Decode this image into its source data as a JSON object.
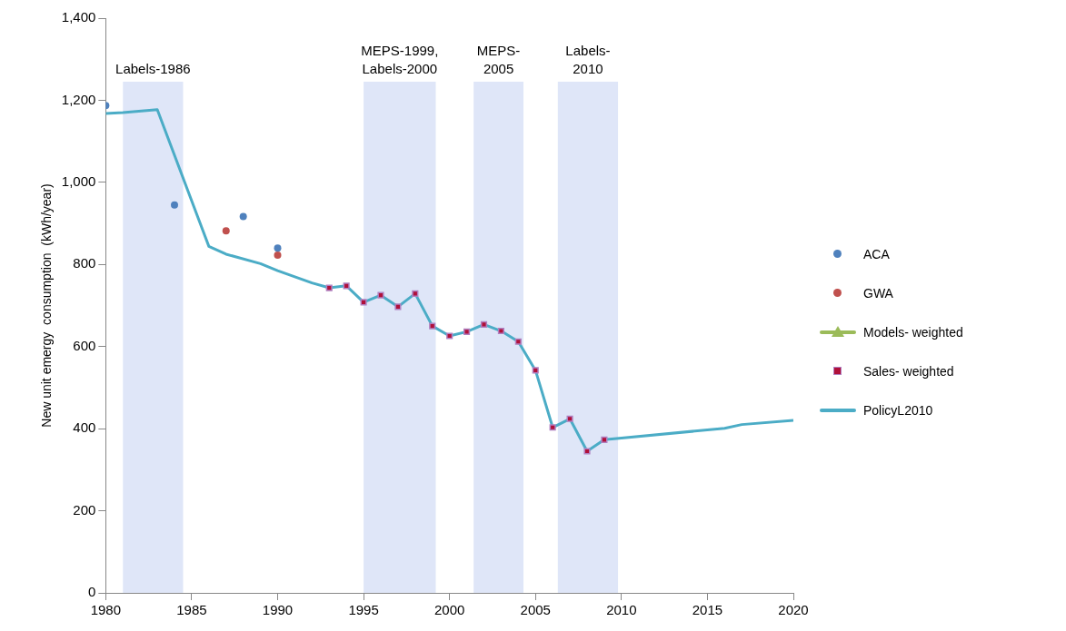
{
  "chart_data": {
    "type": "scatter",
    "ylabel": "New unit emergy  consumption  (kWh/year)",
    "xlim": [
      1980,
      2020
    ],
    "xticks": [
      1980,
      1985,
      1990,
      1995,
      2000,
      2005,
      2010,
      2015,
      2020
    ],
    "ylim": [
      0,
      1400
    ],
    "yticks": [
      0,
      200,
      400,
      600,
      800,
      {
        "value": 1000,
        "label": "1,000"
      },
      {
        "value": 1200,
        "label": "1,200"
      },
      {
        "value": 1400,
        "label": "1,400"
      }
    ],
    "grid": false,
    "legend": "right",
    "series": [
      {
        "name": "ACA",
        "marker": "circle",
        "color": "#4f81bd",
        "x": [
          1980,
          1984,
          1988,
          1990
        ],
        "values": [
          1187,
          945,
          917,
          840
        ]
      },
      {
        "name": "GWA",
        "marker": "circle",
        "color": "#c0504d",
        "x": [
          1987,
          1990
        ],
        "values": [
          882,
          823
        ]
      },
      {
        "name": "Models- weighted",
        "type": "line",
        "marker": "triangle",
        "color": "#9bbb59"
      },
      {
        "name": "Sales- weighted",
        "marker": "square",
        "color": "#b0103a",
        "x": [
          1993,
          1994,
          1995,
          1996,
          1997,
          1998,
          1999,
          2000,
          2001,
          2002,
          2003,
          2004,
          2005,
          2006,
          2007,
          2008,
          2009
        ],
        "values": [
          743,
          748,
          708,
          725,
          697,
          729,
          650,
          626,
          636,
          654,
          638,
          612,
          542,
          403,
          424,
          345,
          373
        ]
      },
      {
        "name": "PolicyL2010",
        "type": "line",
        "marker": "none",
        "color": "#4bacc6",
        "x": [
          1980,
          1981,
          1983,
          1986,
          1987,
          1989,
          1990,
          1991,
          1992,
          1993,
          1994,
          1995,
          1996,
          1997,
          1998,
          1999,
          2000,
          2001,
          2002,
          2003,
          2004,
          2005,
          2006,
          2007,
          2008,
          2009,
          2010,
          2016,
          2017,
          2020
        ],
        "values": [
          1168,
          1170,
          1177,
          844,
          825,
          802,
          785,
          770,
          755,
          743,
          748,
          708,
          725,
          697,
          729,
          650,
          626,
          636,
          654,
          638,
          612,
          542,
          403,
          424,
          345,
          373,
          377,
          401,
          410,
          420
        ]
      }
    ],
    "bands": [
      {
        "axis": "x",
        "from": 1981,
        "to": 1984.5,
        "label": "Labels-1986",
        "color": "#c9d6f3"
      },
      {
        "axis": "x",
        "from": 1995,
        "to": 1999.2,
        "label": "MEPS-1999,\nLabels-2000",
        "color": "#c9d6f3"
      },
      {
        "axis": "x",
        "from": 2001.4,
        "to": 2004.3,
        "label": "MEPS-\n2005",
        "color": "#c9d6f3"
      },
      {
        "axis": "x",
        "from": 2006.3,
        "to": 2009.8,
        "label": "Labels-\n2010",
        "color": "#c9d6f3"
      }
    ]
  }
}
